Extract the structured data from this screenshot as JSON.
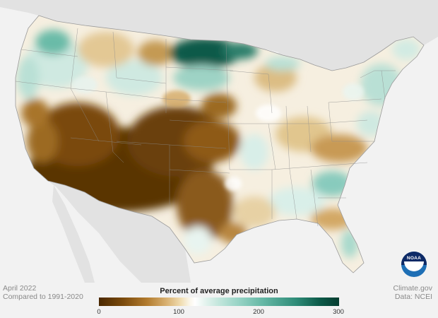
{
  "map": {
    "date": "April 2022",
    "baseline": "Compared to 1991-2020",
    "source_site": "Climate.gov",
    "source_data": "Data: NCEI"
  },
  "legend": {
    "title": "Percent of average precipitation",
    "ticks": [
      "0",
      "100",
      "200",
      "300"
    ]
  },
  "logo": {
    "text": "NOAA"
  },
  "colors": {
    "very_dry": "#5a3400",
    "dry": "#a8742a",
    "near_normal": "#ffffff",
    "wet": "#88cbbd",
    "very_wet": "#0c5a48",
    "land_outside": "#e2e2e2",
    "water": "#f2f2f2"
  }
}
